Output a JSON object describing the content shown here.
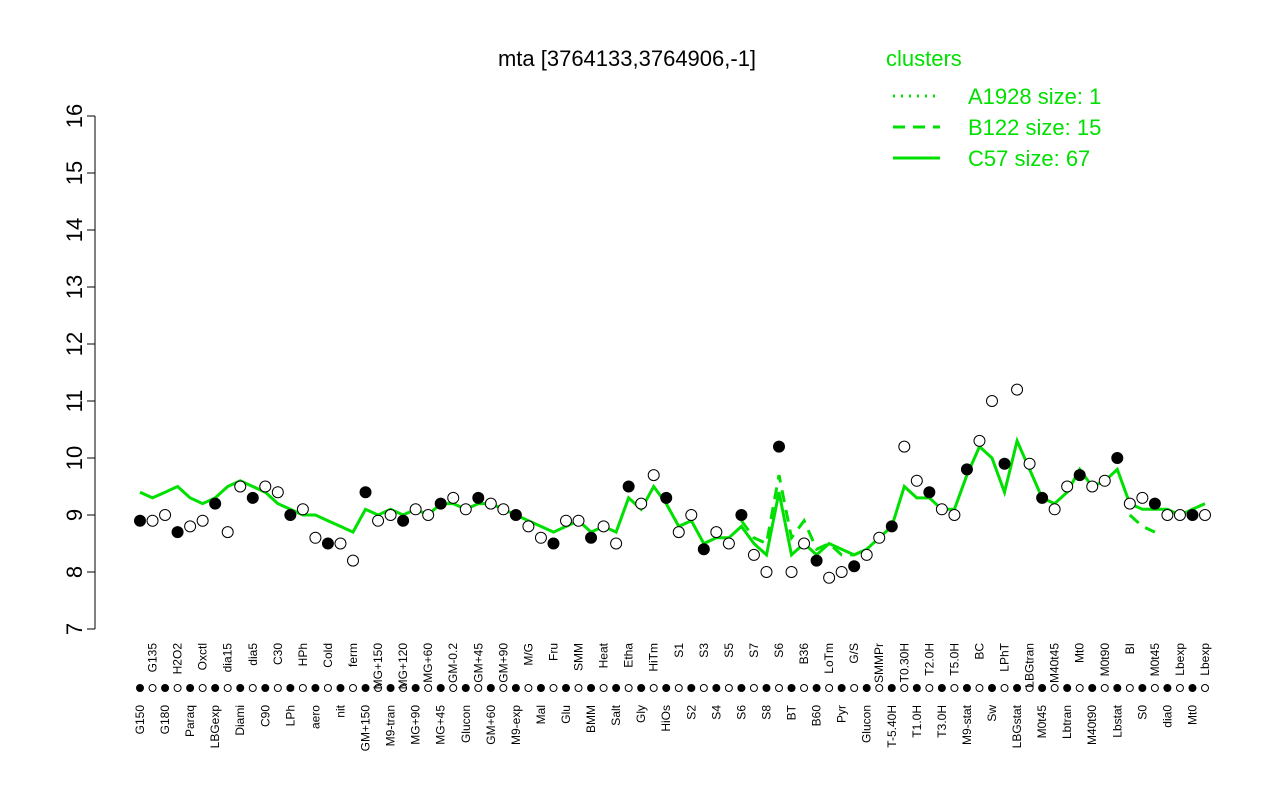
{
  "chart_data": {
    "type": "line",
    "title": "mta [3764133,3764906,-1]",
    "legend_title": "clusters",
    "legend_position": "top-right",
    "ylim": [
      7,
      16
    ],
    "yticks": [
      7,
      8,
      9,
      10,
      11,
      12,
      13,
      14,
      15,
      16
    ],
    "point_color": "#000000",
    "categories": [
      "G150",
      "G135",
      "G180",
      "H2O2",
      "Paraq",
      "Oxctl",
      "LBGexp",
      "dia15",
      "Diami",
      "dia5",
      "C90",
      "C30",
      "LPh",
      "HPh",
      "aero",
      "Cold",
      "nit",
      "ferm",
      "GM+150",
      "MG+150",
      "M9-tran",
      "MG+120",
      "MG+90",
      "MG+60",
      "MG+45",
      "GM-0.2",
      "Glucon",
      "GM+45",
      "GM+60",
      "GM+90",
      "M9-exp",
      "M/G",
      "Mal",
      "Fru",
      "Glu",
      "SMM",
      "BMM",
      "Heat",
      "Salt",
      "Etha",
      "Gly",
      "HiTm",
      "HiOs",
      "S1",
      "S2",
      "S3",
      "S4",
      "S5",
      "S6",
      "S7",
      "S8",
      "S6",
      "BT",
      "B36",
      "B60",
      "LoTm",
      "Pyr",
      "G/S",
      "Glucon",
      "SMMPr",
      "T-5.40H",
      "T0.30H",
      "T1.0H",
      "T2.0H",
      "T3.0H",
      "T5.0H",
      "M9-stat",
      "BC",
      "Sw",
      "LPhT",
      "LBGstat",
      "LBGtran",
      "M0t45",
      "M40t45",
      "Lbtran",
      "Mt0",
      "M40t90",
      "M0t90",
      "Lbstat",
      "BI",
      "S0",
      "M0t45",
      "dia0",
      "Lbexp",
      "Mt0",
      "Lbexp"
    ],
    "values": [
      8.9,
      8.9,
      9.0,
      8.7,
      8.8,
      8.9,
      9.2,
      8.7,
      9.5,
      9.3,
      9.5,
      9.4,
      9.0,
      9.1,
      8.6,
      8.5,
      8.5,
      8.2,
      9.4,
      8.9,
      9.0,
      8.9,
      9.1,
      9.0,
      9.2,
      9.3,
      9.1,
      9.3,
      9.2,
      9.1,
      9.0,
      8.8,
      8.6,
      8.5,
      8.9,
      8.9,
      8.6,
      8.8,
      8.5,
      9.5,
      9.2,
      9.7,
      9.3,
      8.7,
      9.0,
      8.4,
      8.7,
      8.5,
      9.0,
      8.3,
      8.0,
      10.2,
      8.0,
      8.5,
      8.2,
      7.9,
      8.0,
      8.1,
      8.3,
      8.6,
      8.8,
      10.2,
      9.6,
      9.4,
      9.1,
      9.0,
      9.8,
      10.3,
      11.0,
      9.9,
      11.2,
      9.9,
      9.3,
      9.1,
      9.5,
      9.7,
      9.5,
      9.6,
      10.0,
      9.2,
      9.3,
      9.2,
      9.0,
      9.0,
      9.0,
      9.0
    ],
    "series": [
      {
        "name": "A1928 size: 1",
        "color": "#00e000",
        "style": "dotted",
        "values": [
          null,
          null,
          null,
          null,
          null,
          null,
          null,
          null,
          null,
          null,
          null,
          null,
          null,
          null,
          null,
          null,
          null,
          null,
          null,
          null,
          null,
          null,
          null,
          null,
          null,
          null,
          null,
          null,
          null,
          null,
          null,
          null,
          null,
          null,
          null,
          null,
          null,
          null,
          null,
          null,
          null,
          null,
          null,
          null,
          null,
          null,
          null,
          null,
          null,
          null,
          null,
          null,
          null,
          null,
          null,
          null,
          null,
          null,
          null,
          null,
          null,
          null,
          null,
          null,
          null,
          null,
          null,
          null,
          null,
          null,
          null,
          null,
          null,
          null,
          null,
          null,
          null,
          null,
          null,
          null,
          null,
          null,
          null,
          null,
          null,
          null
        ]
      },
      {
        "name": "B122 size: 15",
        "color": "#00e000",
        "style": "dashed",
        "values": [
          null,
          null,
          null,
          null,
          null,
          null,
          null,
          null,
          null,
          null,
          null,
          null,
          null,
          null,
          null,
          null,
          null,
          null,
          null,
          null,
          null,
          null,
          null,
          null,
          null,
          null,
          null,
          null,
          null,
          null,
          null,
          null,
          null,
          null,
          null,
          null,
          null,
          null,
          null,
          null,
          null,
          null,
          null,
          null,
          null,
          null,
          null,
          null,
          8.9,
          8.6,
          8.5,
          9.7,
          8.6,
          8.9,
          8.4,
          8.5,
          8.3,
          8.3,
          8.4,
          null,
          null,
          null,
          null,
          null,
          null,
          null,
          null,
          null,
          null,
          null,
          null,
          10.3,
          null,
          null,
          null,
          null,
          null,
          null,
          null,
          9.0,
          8.8,
          8.7,
          null,
          null,
          null,
          null
        ]
      },
      {
        "name": "C57 size: 67",
        "color": "#00e000",
        "style": "solid",
        "values": [
          9.4,
          9.3,
          9.4,
          9.5,
          9.3,
          9.2,
          9.3,
          9.5,
          9.6,
          9.5,
          9.4,
          9.2,
          9.1,
          9.0,
          9.0,
          8.9,
          8.8,
          8.7,
          9.1,
          9.0,
          9.1,
          9.0,
          9.1,
          9.0,
          9.2,
          9.2,
          9.1,
          9.2,
          9.2,
          9.1,
          9.0,
          8.9,
          8.8,
          8.7,
          8.8,
          8.9,
          8.7,
          8.8,
          8.7,
          9.3,
          9.1,
          9.5,
          9.2,
          8.8,
          8.9,
          8.5,
          8.6,
          8.6,
          8.8,
          8.5,
          8.3,
          9.4,
          8.3,
          8.5,
          8.3,
          8.5,
          8.4,
          8.3,
          8.4,
          8.6,
          8.8,
          9.5,
          9.3,
          9.3,
          9.1,
          9.1,
          9.7,
          10.2,
          10.0,
          9.4,
          10.3,
          9.8,
          9.3,
          9.2,
          9.4,
          9.8,
          9.5,
          9.6,
          9.8,
          9.2,
          9.1,
          9.1,
          9.1,
          9.0,
          9.1,
          9.2
        ]
      }
    ]
  }
}
